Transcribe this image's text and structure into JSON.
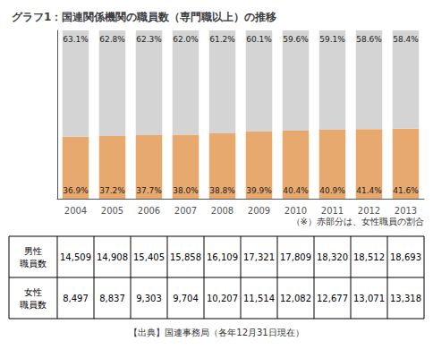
{
  "chart_data": {
    "type": "bar",
    "title": "グラフ1：国連関係機関の職員数（専門職以上）の推移",
    "categories": [
      "2004",
      "2005",
      "2006",
      "2007",
      "2008",
      "2009",
      "2010",
      "2011",
      "2012",
      "2013"
    ],
    "series": [
      {
        "color": "#e8a96e",
        "values": [
          36.9,
          37.2,
          37.7,
          38.0,
          38.8,
          39.9,
          40.4,
          40.9,
          41.4,
          41.6
        ],
        "value_labels": [
          "36.9%",
          "37.2%",
          "37.7%",
          "38.0%",
          "38.8%",
          "39.9%",
          "40.4%",
          "40.9%",
          "41.4%",
          "41.6%"
        ]
      },
      {
        "color": "#d4d4d4",
        "values": [
          63.1,
          62.8,
          62.3,
          62.0,
          61.2,
          60.1,
          59.6,
          59.1,
          58.6,
          58.4
        ],
        "value_labels": [
          "63.1%",
          "62.8%",
          "62.3%",
          "62.0%",
          "61.2%",
          "60.1%",
          "59.6%",
          "59.1%",
          "58.6%",
          "58.4%"
        ]
      }
    ],
    "stacked": true,
    "data_labels": true,
    "ylim": [
      0,
      100
    ],
    "yticks": [],
    "tick_labels": "x",
    "grid": false,
    "annotations": [
      "（※）赤部分は、女性職員の割合"
    ],
    "source": "【出典】国連事務局（各年12月31日現在）",
    "table": {
      "rows": [
        {
          "label": [
            "男性",
            "職員数"
          ],
          "values": [
            14509,
            14908,
            15405,
            15858,
            16109,
            17321,
            17809,
            18320,
            18512,
            18693
          ],
          "value_labels": [
            "14,509",
            "14,908",
            "15,405",
            "15,858",
            "16,109",
            "17,321",
            "17,809",
            "18,320",
            "18,512",
            "18,693"
          ]
        },
        {
          "label": [
            "女性",
            "職員数"
          ],
          "values": [
            8497,
            8837,
            9303,
            9704,
            10207,
            11514,
            12082,
            12677,
            13071,
            13318
          ],
          "value_labels": [
            "8,497",
            "8,837",
            "9,303",
            "9,704",
            "10,207",
            "11,514",
            "12,082",
            "12,677",
            "13,071",
            "13,318"
          ]
        }
      ]
    }
  }
}
